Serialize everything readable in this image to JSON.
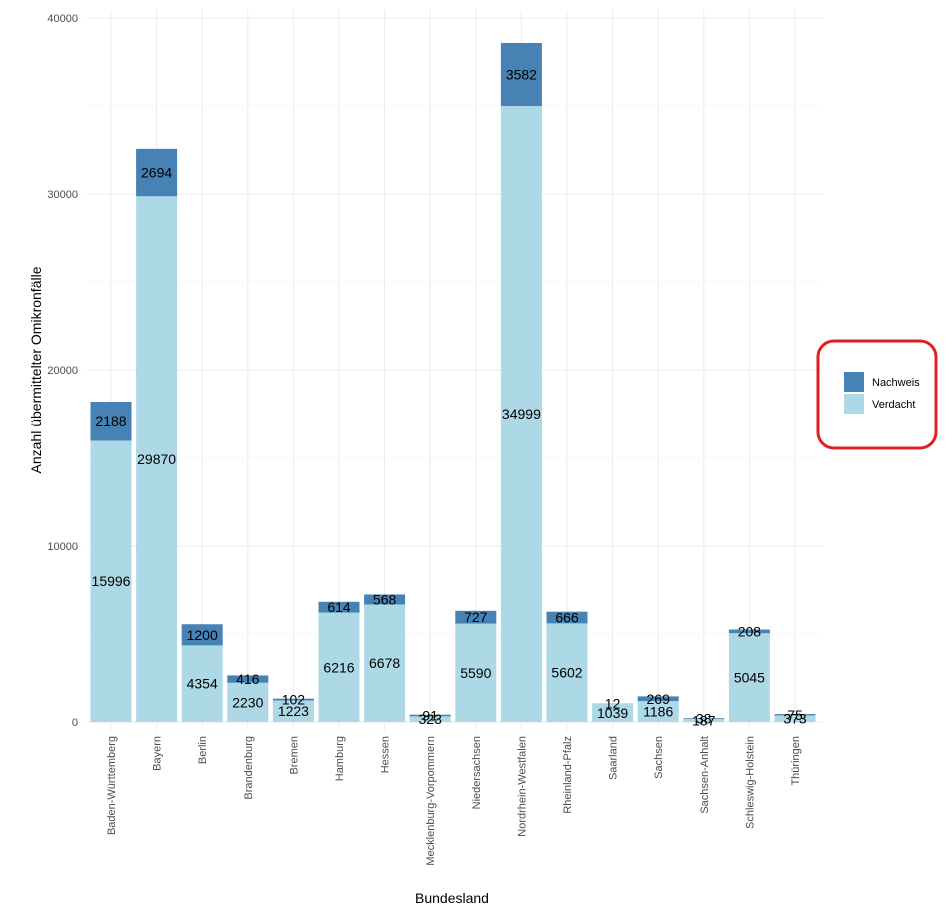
{
  "chart_data": {
    "type": "bar",
    "stacked": true,
    "xlabel": "Bundesland",
    "ylabel": "Anzahl übermittelter Omikronfälle",
    "ylim": [
      0,
      40000
    ],
    "yticks": [
      0,
      10000,
      20000,
      30000,
      40000
    ],
    "grid": true,
    "legend_position": "right",
    "legend_highlighted": true,
    "categories": [
      "Baden-Württemberg",
      "Bayern",
      "Berlin",
      "Brandenburg",
      "Bremen",
      "Hamburg",
      "Hessen",
      "Mecklenburg-Vorpommern",
      "Niedersachsen",
      "Nordrhein-Westfalen",
      "Rheinland-Pfalz",
      "Saarland",
      "Sachsen",
      "Sachsen-Anhalt",
      "Schleswig-Holstein",
      "Thüringen"
    ],
    "series": [
      {
        "name": "Verdacht",
        "color": "#add8e6",
        "values": [
          15996,
          29870,
          4354,
          2230,
          1223,
          6216,
          6678,
          323,
          5590,
          34999,
          5602,
          1039,
          1186,
          187,
          5045,
          373
        ]
      },
      {
        "name": "Nachweis",
        "color": "#4682b4",
        "values": [
          2188,
          2694,
          1200,
          416,
          102,
          614,
          568,
          91,
          727,
          3582,
          666,
          12,
          269,
          38,
          208,
          75
        ]
      }
    ],
    "legend": [
      "Nachweis",
      "Verdacht"
    ],
    "highlight_color": "#e02020"
  }
}
